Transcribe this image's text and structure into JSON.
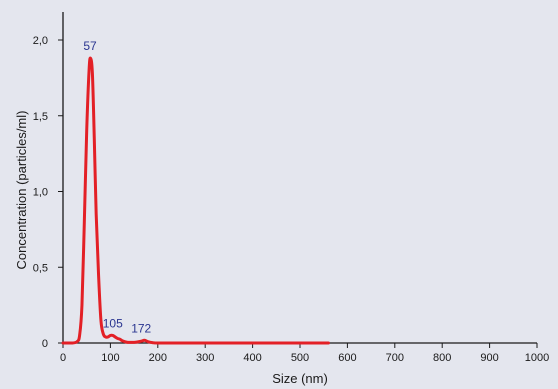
{
  "chart_data": {
    "type": "line",
    "title": "",
    "xlabel": "Size (nm)",
    "ylabel": "Concentration (particles/ml)",
    "xlim": [
      0,
      1000
    ],
    "ylim": [
      0,
      2.1
    ],
    "x_ticks": [
      0,
      100,
      200,
      300,
      400,
      500,
      600,
      700,
      800,
      900,
      1000
    ],
    "y_ticks": [
      {
        "value": 0,
        "label": "0"
      },
      {
        "value": 0.5,
        "label": "0,5"
      },
      {
        "value": 1.0,
        "label": "1,0"
      },
      {
        "value": 1.5,
        "label": "1,5"
      },
      {
        "value": 2.0,
        "label": "2,0"
      }
    ],
    "grid": false,
    "colors": {
      "background": "#e4e6ee",
      "line": "#e32026",
      "annotation": "#2a3590",
      "axis": "#1a1a1a"
    },
    "series": [
      {
        "x": [
          0,
          20,
          30,
          35,
          40,
          45,
          50,
          55,
          58,
          62,
          66,
          70,
          75,
          80,
          85,
          90,
          95,
          100,
          105,
          110,
          115,
          120,
          125,
          135,
          145,
          155,
          165,
          172,
          180,
          190,
          200,
          250,
          300,
          400,
          500,
          560
        ],
        "y": [
          0,
          0,
          0.01,
          0.05,
          0.25,
          0.8,
          1.4,
          1.8,
          1.88,
          1.78,
          1.35,
          0.85,
          0.45,
          0.15,
          0.06,
          0.04,
          0.04,
          0.05,
          0.05,
          0.04,
          0.03,
          0.025,
          0.015,
          0.005,
          0.004,
          0.006,
          0.012,
          0.018,
          0.008,
          0.002,
          0,
          0,
          0,
          0,
          0,
          0
        ]
      }
    ],
    "annotations": [
      {
        "text": "57",
        "x": 57,
        "y": 1.88
      },
      {
        "text": "105",
        "x": 105,
        "y": 0.05
      },
      {
        "text": "172",
        "x": 165,
        "y": 0.018
      }
    ]
  }
}
